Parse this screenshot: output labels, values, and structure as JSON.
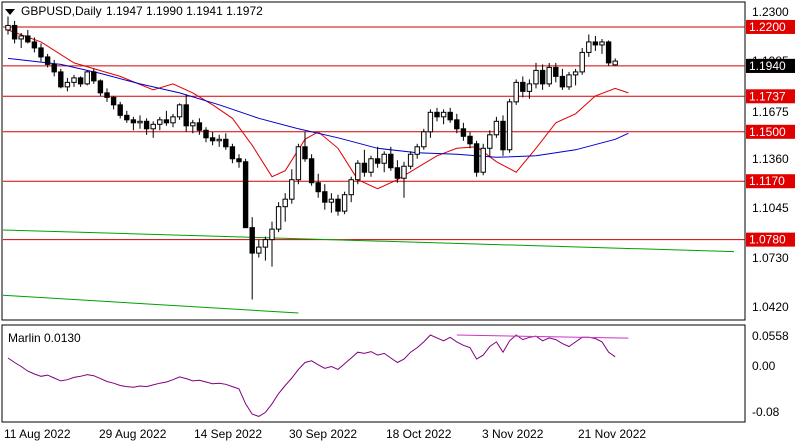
{
  "header": {
    "symbol": "GBPUSD,Daily",
    "ohlc": "1.1947 1.1990 1.1941 1.1972"
  },
  "indicator": {
    "label": "Marlin 0.0130"
  },
  "colors": {
    "background": "#ffffff",
    "candle_outline": "#000000",
    "bull_body": "#ffffff",
    "bear_body": "#000000",
    "level_line": "#d00000",
    "level_tag": "#e00000",
    "ma_fast": "#e00000",
    "ma_slow": "#0000cc",
    "trend_line": "#00a000",
    "osc_line": "#800080",
    "osc_trend": "#cc33cc",
    "price_tag": "#000000"
  },
  "chart_data": [
    {
      "type": "candlestick",
      "title": "GBPUSD,Daily",
      "x_ticks": [
        "11 Aug 2022",
        "29 Aug 2022",
        "14 Sep 2022",
        "30 Sep 2022",
        "18 Oct 2022",
        "3 Nov 2022",
        "21 Nov 2022"
      ],
      "y_ticks": [
        "1.2300",
        "1.1985",
        "1.1675",
        "1.1360",
        "1.1045",
        "1.0730",
        "1.0420"
      ],
      "ylim": [
        1.025,
        1.236
      ],
      "grid": false,
      "last_price": "1.1940",
      "levels": [
        {
          "label": "1.2200",
          "value": 1.22
        },
        {
          "label": "1.1940",
          "value": 1.194
        },
        {
          "label": "1.1737",
          "value": 1.1737
        },
        {
          "label": "1.1500",
          "value": 1.15
        },
        {
          "label": "1.1170",
          "value": 1.117
        },
        {
          "label": "1.0780",
          "value": 1.078
        }
      ],
      "candles": [
        [
          1.218,
          1.227,
          1.215,
          1.221
        ],
        [
          1.221,
          1.224,
          1.209,
          1.212
        ],
        [
          1.212,
          1.216,
          1.206,
          1.214
        ],
        [
          1.214,
          1.218,
          1.209,
          1.21
        ],
        [
          1.21,
          1.213,
          1.203,
          1.206
        ],
        [
          1.206,
          1.209,
          1.197,
          1.2
        ],
        [
          1.2,
          1.202,
          1.193,
          1.195
        ],
        [
          1.195,
          1.198,
          1.187,
          1.19
        ],
        [
          1.19,
          1.192,
          1.179,
          1.18
        ],
        [
          1.18,
          1.186,
          1.177,
          1.183
        ],
        [
          1.183,
          1.188,
          1.18,
          1.186
        ],
        [
          1.186,
          1.187,
          1.18,
          1.182
        ],
        [
          1.182,
          1.191,
          1.181,
          1.19
        ],
        [
          1.19,
          1.192,
          1.182,
          1.184
        ],
        [
          1.184,
          1.185,
          1.174,
          1.176
        ],
        [
          1.176,
          1.179,
          1.17,
          1.173
        ],
        [
          1.173,
          1.174,
          1.165,
          1.168
        ],
        [
          1.168,
          1.17,
          1.159,
          1.161
        ],
        [
          1.161,
          1.164,
          1.156,
          1.158
        ],
        [
          1.158,
          1.16,
          1.151,
          1.156
        ],
        [
          1.156,
          1.161,
          1.152,
          1.157
        ],
        [
          1.157,
          1.159,
          1.148,
          1.152
        ],
        [
          1.152,
          1.157,
          1.146,
          1.155
        ],
        [
          1.155,
          1.16,
          1.151,
          1.158
        ],
        [
          1.158,
          1.164,
          1.154,
          1.156
        ],
        [
          1.156,
          1.162,
          1.153,
          1.16
        ],
        [
          1.16,
          1.169,
          1.158,
          1.168
        ],
        [
          1.168,
          1.175,
          1.15,
          1.154
        ],
        [
          1.154,
          1.158,
          1.149,
          1.156
        ],
        [
          1.156,
          1.159,
          1.148,
          1.151
        ],
        [
          1.151,
          1.153,
          1.143,
          1.146
        ],
        [
          1.146,
          1.15,
          1.141,
          1.144
        ],
        [
          1.144,
          1.148,
          1.14,
          1.145
        ],
        [
          1.145,
          1.149,
          1.138,
          1.14
        ],
        [
          1.14,
          1.142,
          1.129,
          1.132
        ],
        [
          1.132,
          1.135,
          1.126,
          1.13
        ],
        [
          1.13,
          1.132,
          1.086,
          1.086
        ],
        [
          1.086,
          1.093,
          1.038,
          1.069
        ],
        [
          1.069,
          1.078,
          1.066,
          1.073
        ],
        [
          1.073,
          1.08,
          1.064,
          1.078
        ],
        [
          1.078,
          1.09,
          1.06,
          1.085
        ],
        [
          1.085,
          1.103,
          1.083,
          1.1
        ],
        [
          1.1,
          1.109,
          1.09,
          1.105
        ],
        [
          1.105,
          1.125,
          1.102,
          1.118
        ],
        [
          1.118,
          1.142,
          1.115,
          1.14
        ],
        [
          1.14,
          1.15,
          1.13,
          1.132
        ],
        [
          1.132,
          1.135,
          1.114,
          1.116
        ],
        [
          1.116,
          1.122,
          1.106,
          1.11
        ],
        [
          1.11,
          1.115,
          1.098,
          1.103
        ],
        [
          1.103,
          1.109,
          1.096,
          1.105
        ],
        [
          1.105,
          1.108,
          1.094,
          1.097
        ],
        [
          1.097,
          1.11,
          1.095,
          1.108
        ],
        [
          1.108,
          1.12,
          1.103,
          1.118
        ],
        [
          1.118,
          1.131,
          1.115,
          1.129
        ],
        [
          1.129,
          1.138,
          1.12,
          1.123
        ],
        [
          1.123,
          1.134,
          1.12,
          1.132
        ],
        [
          1.132,
          1.14,
          1.126,
          1.129
        ],
        [
          1.129,
          1.137,
          1.123,
          1.135
        ],
        [
          1.135,
          1.14,
          1.124,
          1.126
        ],
        [
          1.126,
          1.131,
          1.116,
          1.119
        ],
        [
          1.119,
          1.13,
          1.106,
          1.127
        ],
        [
          1.127,
          1.137,
          1.125,
          1.135
        ],
        [
          1.135,
          1.142,
          1.132,
          1.14
        ],
        [
          1.14,
          1.152,
          1.138,
          1.15
        ],
        [
          1.15,
          1.165,
          1.146,
          1.163
        ],
        [
          1.163,
          1.166,
          1.157,
          1.16
        ],
        [
          1.16,
          1.165,
          1.155,
          1.163
        ],
        [
          1.163,
          1.166,
          1.156,
          1.158
        ],
        [
          1.158,
          1.162,
          1.149,
          1.152
        ],
        [
          1.152,
          1.156,
          1.144,
          1.147
        ],
        [
          1.147,
          1.15,
          1.139,
          1.142
        ],
        [
          1.142,
          1.144,
          1.12,
          1.123
        ],
        [
          1.123,
          1.142,
          1.121,
          1.139
        ],
        [
          1.139,
          1.151,
          1.133,
          1.148
        ],
        [
          1.148,
          1.16,
          1.146,
          1.157
        ],
        [
          1.157,
          1.161,
          1.134,
          1.138
        ],
        [
          1.138,
          1.172,
          1.136,
          1.17
        ],
        [
          1.17,
          1.185,
          1.168,
          1.183
        ],
        [
          1.183,
          1.187,
          1.173,
          1.177
        ],
        [
          1.177,
          1.185,
          1.172,
          1.182
        ],
        [
          1.182,
          1.196,
          1.179,
          1.191
        ],
        [
          1.191,
          1.195,
          1.178,
          1.182
        ],
        [
          1.182,
          1.196,
          1.18,
          1.193
        ],
        [
          1.193,
          1.196,
          1.183,
          1.187
        ],
        [
          1.187,
          1.192,
          1.178,
          1.18
        ],
        [
          1.18,
          1.19,
          1.178,
          1.188
        ],
        [
          1.188,
          1.192,
          1.181,
          1.19
        ],
        [
          1.19,
          1.206,
          1.188,
          1.203
        ],
        [
          1.203,
          1.215,
          1.2,
          1.21
        ],
        [
          1.21,
          1.214,
          1.204,
          1.208
        ],
        [
          1.208,
          1.212,
          1.202,
          1.21
        ],
        [
          1.21,
          1.211,
          1.194,
          1.196
        ],
        [
          1.1947,
          1.199,
          1.1941,
          1.1972
        ]
      ],
      "series": [
        {
          "values": [
            [
              0,
              1.218
            ],
            [
              5,
              1.21
            ],
            [
              10,
              1.196
            ],
            [
              17,
              1.187
            ],
            [
              22,
              1.178
            ],
            [
              25,
              1.182
            ],
            [
              28,
              1.176
            ],
            [
              31,
              1.168
            ],
            [
              34,
              1.159
            ],
            [
              37,
              1.141
            ],
            [
              40,
              1.12
            ],
            [
              42,
              1.124
            ],
            [
              45,
              1.145
            ],
            [
              47,
              1.15
            ],
            [
              50,
              1.139
            ],
            [
              53,
              1.118
            ],
            [
              56,
              1.112
            ],
            [
              59,
              1.118
            ],
            [
              62,
              1.126
            ],
            [
              65,
              1.134
            ],
            [
              68,
              1.139
            ],
            [
              71,
              1.14
            ],
            [
              74,
              1.13
            ],
            [
              77,
              1.123
            ],
            [
              80,
              1.139
            ],
            [
              83,
              1.156
            ],
            [
              86,
              1.162
            ],
            [
              89,
              1.174
            ],
            [
              92,
              1.179
            ],
            [
              94,
              1.176
            ]
          ]
        },
        {
          "values": [
            [
              0,
              1.199
            ],
            [
              8,
              1.195
            ],
            [
              14,
              1.189
            ],
            [
              20,
              1.182
            ],
            [
              26,
              1.176
            ],
            [
              32,
              1.168
            ],
            [
              38,
              1.159
            ],
            [
              44,
              1.152
            ],
            [
              50,
              1.146
            ],
            [
              56,
              1.139
            ],
            [
              62,
              1.136
            ],
            [
              68,
              1.135
            ],
            [
              74,
              1.133
            ],
            [
              80,
              1.134
            ],
            [
              86,
              1.138
            ],
            [
              92,
              1.145
            ],
            [
              94,
              1.149
            ]
          ]
        }
      ],
      "trend_lines": [
        {
          "from": [
            -5,
            1.085
          ],
          "to": [
            110,
            1.07
          ]
        },
        {
          "from": [
            -5,
            1.042
          ],
          "to": [
            44,
            1.029
          ]
        }
      ]
    },
    {
      "type": "line",
      "title": "Marlin 0.0130",
      "y_ticks": [
        "0.0558",
        "0.00",
        "-0.08"
      ],
      "ylim": [
        -0.09,
        0.074
      ],
      "values": [
        0.02,
        0.012,
        0.005,
        -0.003,
        -0.008,
        -0.012,
        -0.01,
        -0.015,
        -0.02,
        -0.018,
        -0.014,
        -0.012,
        -0.009,
        -0.011,
        -0.016,
        -0.021,
        -0.024,
        -0.028,
        -0.03,
        -0.031,
        -0.029,
        -0.03,
        -0.027,
        -0.024,
        -0.022,
        -0.018,
        -0.013,
        -0.016,
        -0.02,
        -0.019,
        -0.022,
        -0.025,
        -0.024,
        -0.026,
        -0.03,
        -0.034,
        -0.06,
        -0.078,
        -0.082,
        -0.075,
        -0.06,
        -0.042,
        -0.028,
        -0.015,
        0.0,
        0.012,
        0.015,
        0.008,
        0.002,
        0.005,
        0.0,
        0.01,
        0.02,
        0.03,
        0.028,
        0.031,
        0.025,
        0.028,
        0.02,
        0.012,
        0.018,
        0.03,
        0.038,
        0.048,
        0.06,
        0.055,
        0.05,
        0.056,
        0.048,
        0.042,
        0.038,
        0.018,
        0.025,
        0.04,
        0.048,
        0.03,
        0.05,
        0.06,
        0.052,
        0.056,
        0.058,
        0.05,
        0.055,
        0.052,
        0.045,
        0.04,
        0.048,
        0.056,
        0.056,
        0.054,
        0.048,
        0.03,
        0.022
      ],
      "trend_line": {
        "from": [
          68,
          0.06
        ],
        "to": [
          94,
          0.0545
        ]
      }
    }
  ]
}
